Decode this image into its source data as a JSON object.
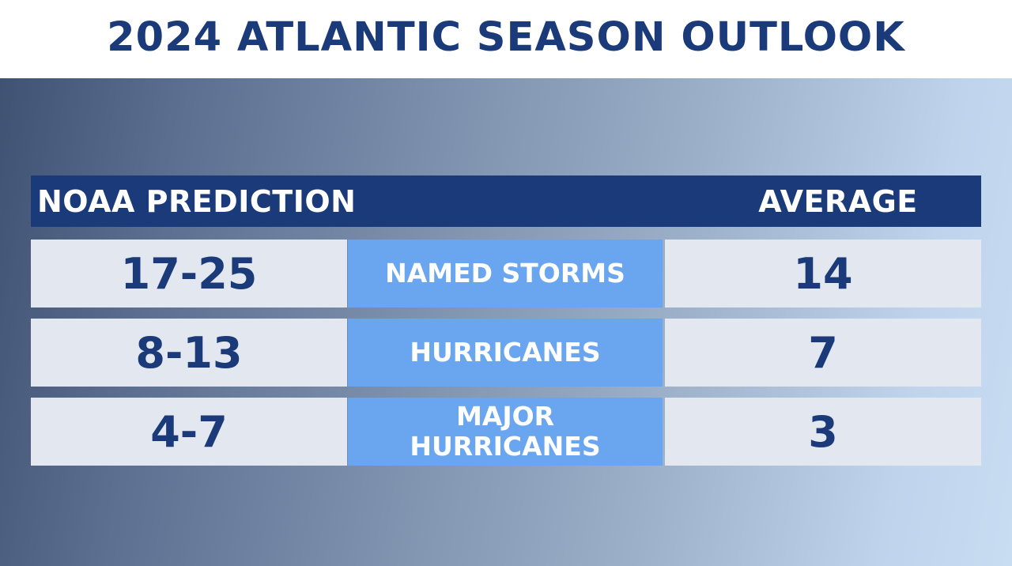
{
  "title": "2024 ATLANTIC SEASON OUTLOOK",
  "table": {
    "header_left": "NOAA PREDICTION",
    "header_right": "AVERAGE",
    "rows": [
      {
        "prediction": "17-25",
        "category_lines": [
          "NAMED STORMS"
        ],
        "average": "14"
      },
      {
        "prediction": "8-13",
        "category_lines": [
          "HURRICANES"
        ],
        "average": "7"
      },
      {
        "prediction": "4-7",
        "category_lines": [
          "MAJOR",
          "HURRICANES"
        ],
        "average": "3"
      }
    ]
  },
  "colors": {
    "navy": "#1b3a7a",
    "light_blue": "#6aa6ef",
    "cell_gray": "#e3e7ef",
    "white": "#ffffff"
  }
}
